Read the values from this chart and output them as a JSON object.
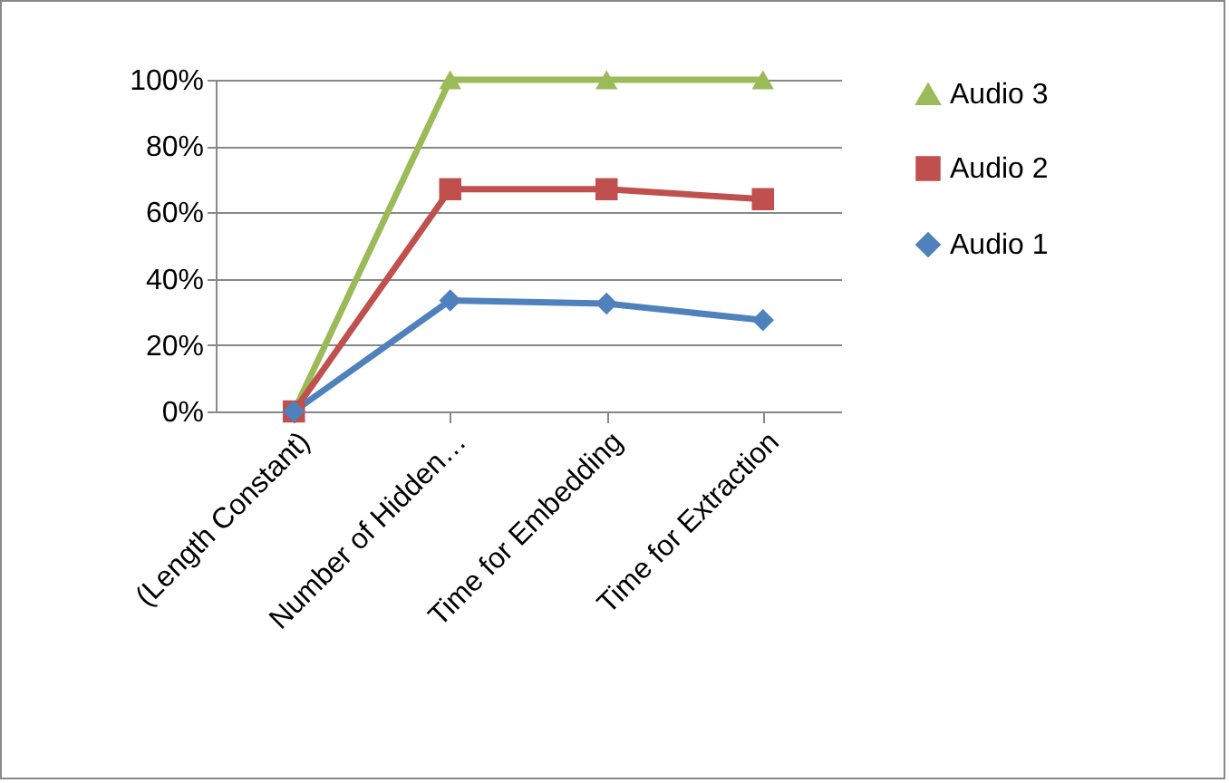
{
  "chart_data": {
    "type": "line",
    "categories": [
      "(Length Constant)",
      "Number of Hidden…",
      "Time for Embedding",
      "Time for Extraction"
    ],
    "series": [
      {
        "name": "Audio 3",
        "color": "#9bbb59",
        "marker": "triangle",
        "values": [
          0,
          100,
          100,
          100
        ]
      },
      {
        "name": "Audio 2",
        "color": "#c0504d",
        "marker": "square",
        "values": [
          0,
          67,
          67,
          64
        ]
      },
      {
        "name": "Audio 1",
        "color": "#4f81bd",
        "marker": "diamond",
        "values": [
          0,
          33.5,
          32.5,
          27.5
        ]
      }
    ],
    "ylim": [
      0,
      100
    ],
    "yticks": [
      {
        "value": 0,
        "label": "0%"
      },
      {
        "value": 20,
        "label": "20%"
      },
      {
        "value": 40,
        "label": "40%"
      },
      {
        "value": 60,
        "label": "60%"
      },
      {
        "value": 80,
        "label": "80%"
      },
      {
        "value": 100,
        "label": "100%"
      }
    ],
    "grid": "y",
    "legend": "right",
    "line_style": "solid"
  }
}
